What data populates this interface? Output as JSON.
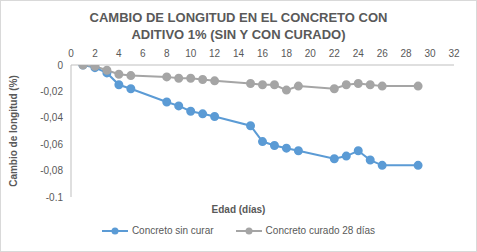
{
  "chart_data": {
    "type": "line",
    "title": "CAMBIO DE LONGITUD EN EL CONCRETO CON ADITIVO 1% (SIN Y CON CURADO)",
    "x_label": "Edad (días)",
    "y_label": "Cambio de longitud (%)",
    "x": [
      1,
      2,
      3,
      4,
      5,
      8,
      9,
      10,
      11,
      12,
      15,
      16,
      17,
      18,
      19,
      22,
      23,
      24,
      25,
      26,
      29
    ],
    "series": [
      {
        "name": "Concreto sin curar",
        "color": "#5b9bd5",
        "marker": "circle",
        "values": [
          0,
          -0.002,
          -0.006,
          -0.015,
          -0.018,
          -0.028,
          -0.031,
          -0.035,
          -0.037,
          -0.039,
          -0.046,
          -0.058,
          -0.061,
          -0.063,
          -0.065,
          -0.071,
          -0.069,
          -0.065,
          -0.072,
          -0.076,
          -0.076
        ]
      },
      {
        "name": "Concreto curado 28 días",
        "color": "#a5a5a5",
        "marker": "circle",
        "values": [
          0,
          -0.001,
          -0.004,
          -0.007,
          -0.008,
          -0.009,
          -0.01,
          -0.01,
          -0.011,
          -0.012,
          -0.014,
          -0.015,
          -0.015,
          -0.019,
          -0.016,
          -0.018,
          -0.015,
          -0.014,
          -0.015,
          -0.016,
          -0.016
        ]
      }
    ],
    "xlim": [
      0,
      32
    ],
    "xticks": [
      0,
      2,
      4,
      6,
      8,
      10,
      12,
      14,
      16,
      18,
      20,
      22,
      24,
      26,
      28,
      30,
      32
    ],
    "ylim": [
      -0.1,
      0
    ],
    "yticks": [
      0,
      {
        "value": -0.02,
        "label": "-0,02"
      },
      {
        "value": -0.04,
        "label": "-0,04"
      },
      {
        "value": -0.06,
        "label": "-0,06"
      },
      {
        "value": -0.08,
        "label": "-0,08"
      },
      {
        "value": -0.1,
        "label": "-0,1"
      }
    ],
    "grid": false,
    "legend": "bottom"
  }
}
